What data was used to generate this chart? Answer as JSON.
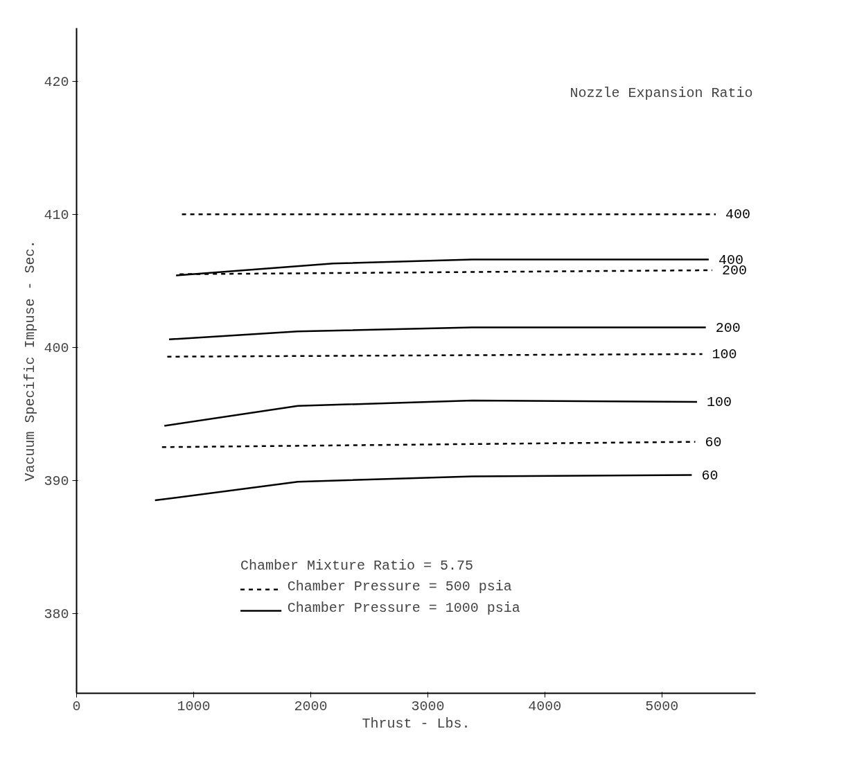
{
  "chart_data": {
    "type": "line",
    "xlabel": "Thrust - Lbs.",
    "ylabel": "Vacuum Specific Impuse - Sec.",
    "legend_title": "Nozzle Expansion Ratio",
    "annotations": [
      "Chamber Mixture Ratio = 5.75",
      "Chamber Pressure =  500 psia",
      "Chamber Pressure = 1000 psia"
    ],
    "series": [
      {
        "name": "400",
        "color": "#000000",
        "line_style": "dashed",
        "x": [
          900,
          5460
        ],
        "values": [
          410.0,
          410.0
        ]
      },
      {
        "name": "400",
        "color": "#000000",
        "line_style": "solid",
        "x": [
          850,
          2190,
          3380,
          5400
        ],
        "values": [
          405.4,
          406.3,
          406.6,
          406.6
        ]
      },
      {
        "name": "200",
        "color": "#000000",
        "line_style": "dashed",
        "x": [
          880,
          5430
        ],
        "values": [
          405.5,
          405.8
        ]
      },
      {
        "name": "200",
        "color": "#000000",
        "line_style": "solid",
        "x": [
          790,
          1890,
          3380,
          5375
        ],
        "values": [
          400.6,
          401.2,
          401.5,
          401.5
        ]
      },
      {
        "name": "100",
        "color": "#000000",
        "line_style": "dashed",
        "x": [
          775,
          5345
        ],
        "values": [
          399.3,
          399.5
        ]
      },
      {
        "name": "100",
        "color": "#000000",
        "line_style": "solid",
        "x": [
          750,
          1890,
          3380,
          5300
        ],
        "values": [
          394.1,
          395.6,
          396.0,
          395.9
        ]
      },
      {
        "name": "60",
        "color": "#000000",
        "line_style": "dashed",
        "x": [
          730,
          5285
        ],
        "values": [
          392.5,
          392.9
        ]
      },
      {
        "name": "60",
        "color": "#000000",
        "line_style": "solid",
        "x": [
          670,
          1890,
          3380,
          5255
        ],
        "values": [
          388.5,
          389.9,
          390.3,
          390.4
        ]
      }
    ],
    "xlim": [
      0,
      5800
    ],
    "xticks": [
      0,
      1000,
      2000,
      3000,
      4000,
      5000
    ],
    "ylim": [
      374,
      424
    ],
    "yticks": [
      380,
      390,
      400,
      410,
      420
    ],
    "grid": false,
    "marker": "none"
  }
}
